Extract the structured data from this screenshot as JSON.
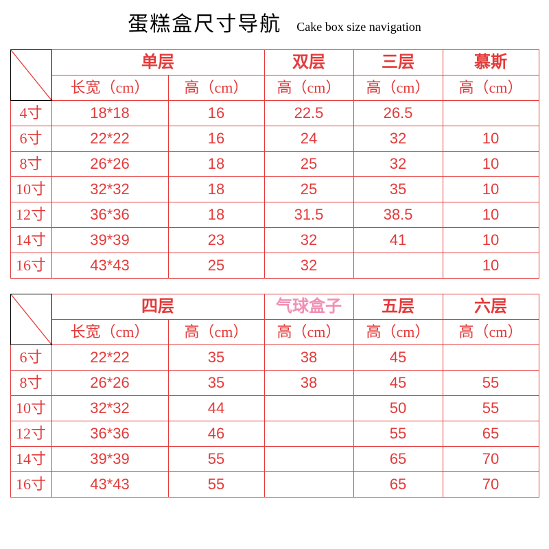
{
  "colors": {
    "border": "#e43a3a",
    "text": "#e43a3a",
    "title": "#000000",
    "special_header": "#f08fb4"
  },
  "title_cn": "蛋糕盒尺寸导航",
  "title_en": "Cake box size navigation",
  "table1": {
    "group_headers": [
      "单层",
      "双层",
      "三层",
      "慕斯"
    ],
    "sub_headers": [
      "长宽（cm）",
      "高（cm）",
      "高（cm）",
      "高（cm）",
      "高（cm）"
    ],
    "rows": [
      {
        "size": "4寸",
        "lw": "18*18",
        "h1": "16",
        "h2": "22.5",
        "h3": "26.5",
        "h4": ""
      },
      {
        "size": "6寸",
        "lw": "22*22",
        "h1": "16",
        "h2": "24",
        "h3": "32",
        "h4": "10"
      },
      {
        "size": "8寸",
        "lw": "26*26",
        "h1": "18",
        "h2": "25",
        "h3": "32",
        "h4": "10"
      },
      {
        "size": "10寸",
        "lw": "32*32",
        "h1": "18",
        "h2": "25",
        "h3": "35",
        "h4": "10"
      },
      {
        "size": "12寸",
        "lw": "36*36",
        "h1": "18",
        "h2": "31.5",
        "h3": "38.5",
        "h4": "10"
      },
      {
        "size": "14寸",
        "lw": "39*39",
        "h1": "23",
        "h2": "32",
        "h3": "41",
        "h4": "10"
      },
      {
        "size": "16寸",
        "lw": "43*43",
        "h1": "25",
        "h2": "32",
        "h3": "",
        "h4": "10"
      }
    ]
  },
  "table2": {
    "group_headers": [
      "四层",
      "气球盒子",
      "五层",
      "六层"
    ],
    "group_header_special_idx": 1,
    "sub_headers": [
      "长宽（cm）",
      "高（cm）",
      "高（cm）",
      "高（cm）",
      "高（cm）"
    ],
    "rows": [
      {
        "size": "6寸",
        "lw": "22*22",
        "h1": "35",
        "h2": "38",
        "h3": "45",
        "h4": ""
      },
      {
        "size": "8寸",
        "lw": "26*26",
        "h1": "35",
        "h2": "38",
        "h3": "45",
        "h4": "55"
      },
      {
        "size": "10寸",
        "lw": "32*32",
        "h1": "44",
        "h2": "",
        "h3": "50",
        "h4": "55"
      },
      {
        "size": "12寸",
        "lw": "36*36",
        "h1": "46",
        "h2": "",
        "h3": "55",
        "h4": "65"
      },
      {
        "size": "14寸",
        "lw": "39*39",
        "h1": "55",
        "h2": "",
        "h3": "65",
        "h4": "70"
      },
      {
        "size": "16寸",
        "lw": "43*43",
        "h1": "55",
        "h2": "",
        "h3": "65",
        "h4": "70"
      }
    ]
  }
}
